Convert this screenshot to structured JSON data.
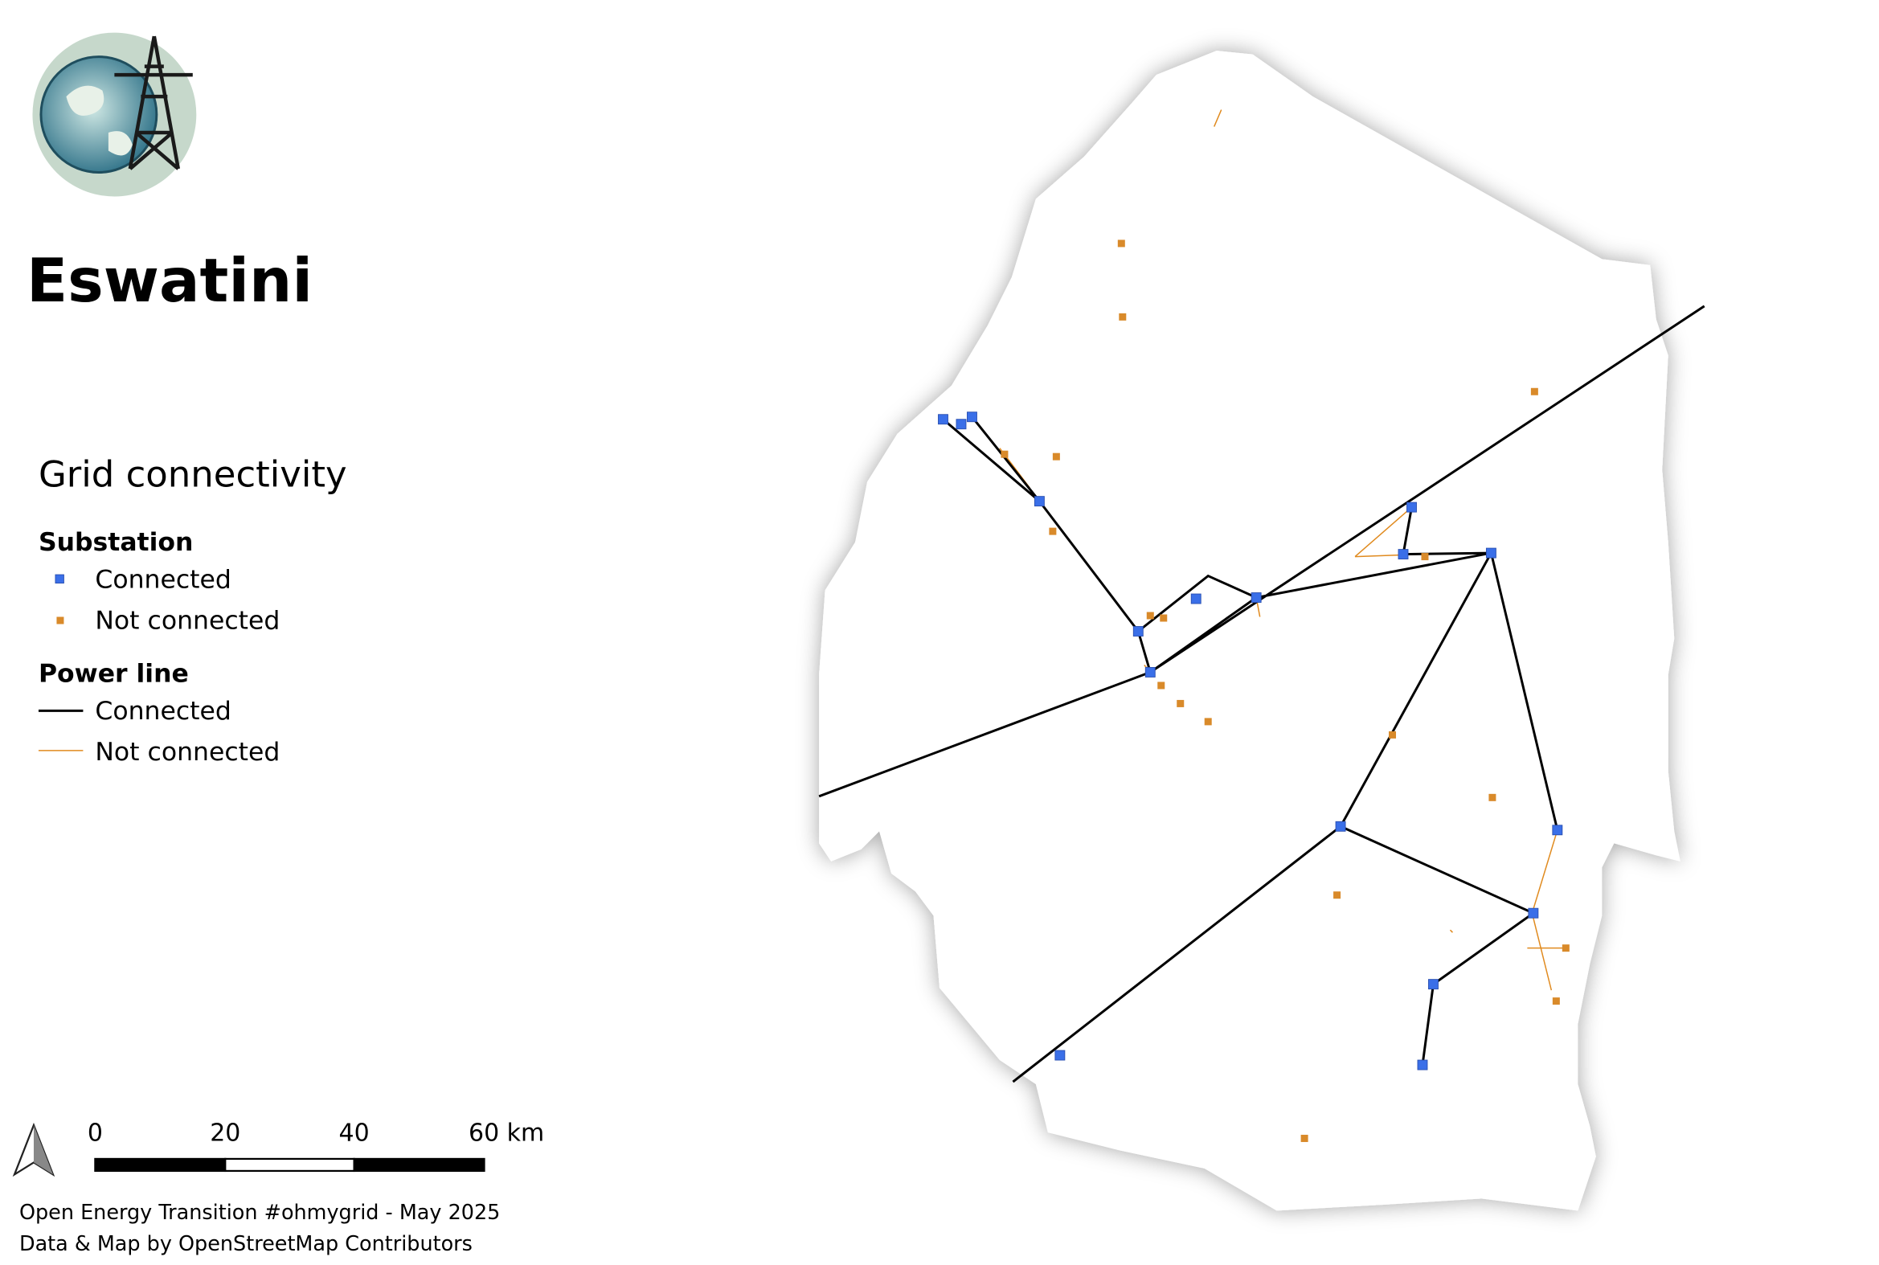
{
  "header": {
    "title": "Eswatini"
  },
  "legend": {
    "title": "Grid connectivity",
    "groups": [
      {
        "heading": "Substation",
        "items": [
          "Connected",
          "Not connected"
        ]
      },
      {
        "heading": "Power line",
        "items": [
          "Connected",
          "Not connected"
        ]
      }
    ]
  },
  "scale_bar": {
    "labels": [
      "0",
      "20",
      "40",
      "60 km"
    ]
  },
  "credits": [
    "Open Energy Transition #ohmygrid - May 2025",
    "Data & Map by OpenStreetMap Contributors"
  ]
}
